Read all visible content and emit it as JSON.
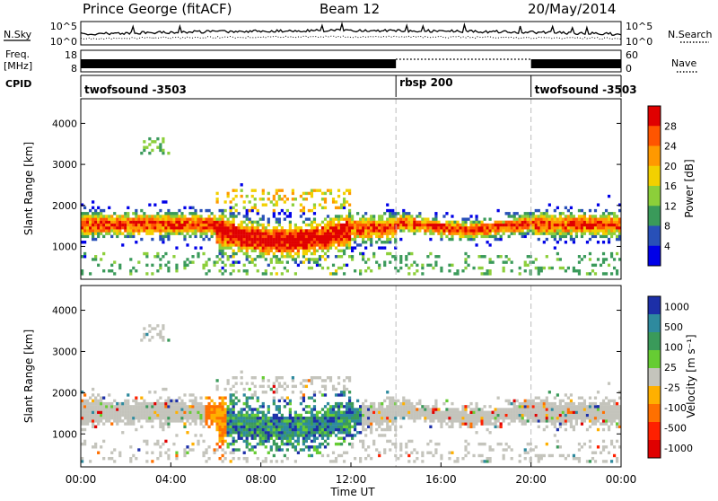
{
  "header": {
    "title": "Prince George (fitACF)",
    "beam": "Beam 12",
    "date": "20/May/2014"
  },
  "noise_panel": {
    "left_label": "N.Sky",
    "left_ticks": [
      "10^5",
      "10^0"
    ],
    "right_label": "N.Search",
    "right_ticks": [
      "10^5",
      "10^0"
    ]
  },
  "freq_panel": {
    "left_label_1": "Freq.",
    "left_label_2": "[MHz]",
    "left_ticks": [
      "18",
      "8"
    ],
    "right_label": "Nave",
    "right_ticks": [
      "60",
      "0"
    ]
  },
  "cpid_panel": {
    "label": "CPID",
    "segments": [
      {
        "name": "twofsound -3503",
        "start_hour": 0,
        "end_hour": 14
      },
      {
        "name": "rbsp 200",
        "start_hour": 14,
        "end_hour": 20
      },
      {
        "name": "twofsound -3503",
        "start_hour": 20,
        "end_hour": 24
      }
    ]
  },
  "chart_data": [
    {
      "type": "heatmap",
      "name": "power",
      "ylabel": "Slant Range [km]",
      "ylim": [
        200,
        4600
      ],
      "yticks": [
        "4000",
        "3000",
        "2000",
        "1000"
      ],
      "colorbar_label": "Power [dB]",
      "colorbar_ticks": [
        "28",
        "24",
        "20",
        "16",
        "12",
        "8",
        "4"
      ],
      "colorbar_colors": [
        "#e00000",
        "#ff5500",
        "#ff9900",
        "#f2d000",
        "#8ccf3a",
        "#3a9a5a",
        "#2850b8",
        "#0000e8"
      ]
    },
    {
      "type": "heatmap",
      "name": "velocity",
      "ylabel": "Slant Range [km]",
      "ylim": [
        200,
        4600
      ],
      "yticks": [
        "4000",
        "3000",
        "2000",
        "1000"
      ],
      "colorbar_label": "Velocity [m s⁻¹]",
      "colorbar_ticks": [
        "1000",
        "500",
        "100",
        "25",
        "-25",
        "-100",
        "-500",
        "-1000"
      ],
      "colorbar_colors": [
        "#1c2fa8",
        "#2e8a9e",
        "#3a9a5a",
        "#66cc33",
        "#c4c4bc",
        "#ffb000",
        "#ff7000",
        "#ff2000",
        "#e00000"
      ]
    }
  ],
  "xaxis": {
    "label": "Time UT",
    "ticks": [
      "00:00",
      "04:00",
      "08:00",
      "12:00",
      "16:00",
      "20:00",
      "00:00"
    ]
  },
  "colors": {
    "frame": "#000000",
    "ground_scatter_grey": "#c4c4bc",
    "boundary_dash": "#bbbbbb"
  }
}
